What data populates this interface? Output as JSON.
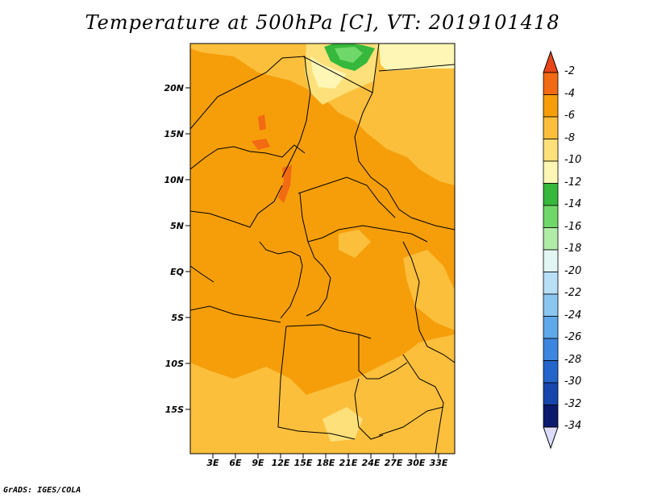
{
  "title": "Temperature at 500hPa [C], VT: 2019101418",
  "credit": "GrADS: IGES/COLA",
  "y_ticks": [
    "20N",
    "15N",
    "10N",
    "5N",
    "EQ",
    "5S",
    "10S",
    "15S"
  ],
  "x_ticks": [
    "3E",
    "6E",
    "9E",
    "12E",
    "15E",
    "18E",
    "21E",
    "24E",
    "27E",
    "30E",
    "33E"
  ],
  "colorbar": {
    "labels": [
      "-2",
      "-4",
      "-6",
      "-8",
      "-10",
      "-12",
      "-14",
      "-16",
      "-18",
      "-20",
      "-22",
      "-24",
      "-26",
      "-28",
      "-30",
      "-32",
      "-34"
    ],
    "colors": [
      "#e8461a",
      "#f26a12",
      "#f59e0a",
      "#fbbf3c",
      "#fde07a",
      "#fef6b4",
      "#35b83c",
      "#70d86a",
      "#b0eba8",
      "#e2f6f4",
      "#b8dff5",
      "#8ac6f0",
      "#5fa8ea",
      "#3d86e0",
      "#2465cc",
      "#1646ac",
      "#0c1a6e",
      "#dcdcff"
    ]
  },
  "field_colors": {
    "base": "#f59e0a",
    "lighter": "#fbbf3c",
    "light": "#fde07a",
    "pale": "#fef6b4",
    "warm": "#f26a12",
    "green": "#35b83c",
    "lightgreen": "#70d86a"
  }
}
